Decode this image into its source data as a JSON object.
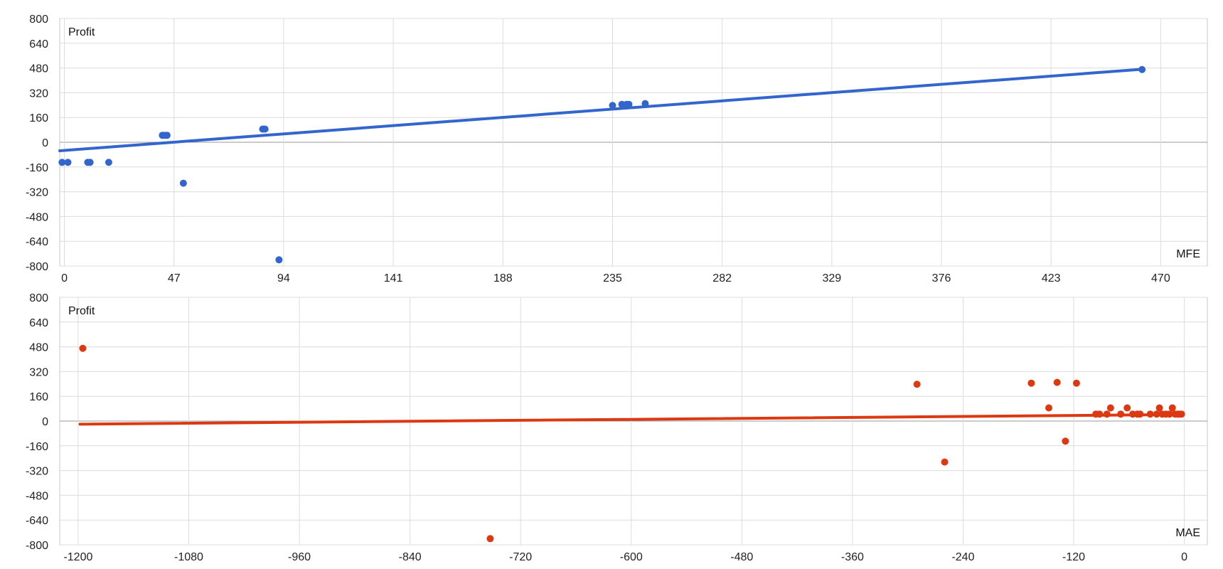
{
  "chart_data": [
    {
      "type": "scatter",
      "title": "",
      "ylabel": "Profit",
      "xlabel": "MFE",
      "xlim": [
        -2,
        490
      ],
      "ylim": [
        -800,
        800
      ],
      "x_ticks": [
        "0",
        "47",
        "94",
        "141",
        "188",
        "235",
        "282",
        "329",
        "376",
        "423",
        "470"
      ],
      "x_tick_values": [
        0,
        47,
        94,
        141,
        188,
        235,
        282,
        329,
        376,
        423,
        470
      ],
      "y_ticks": [
        "800",
        "640",
        "480",
        "320",
        "160",
        "0",
        "-160",
        "-320",
        "-480",
        "-640",
        "-800"
      ],
      "y_tick_values": [
        800,
        640,
        480,
        320,
        160,
        0,
        -160,
        -320,
        -480,
        -640,
        -800
      ],
      "grid": true,
      "color": "#3366cc",
      "points": [
        {
          "x": -1,
          "y": -130
        },
        {
          "x": 1.5,
          "y": -130
        },
        {
          "x": 10,
          "y": -130
        },
        {
          "x": 11,
          "y": -130
        },
        {
          "x": 19,
          "y": -130
        },
        {
          "x": 42,
          "y": 45
        },
        {
          "x": 43,
          "y": 45
        },
        {
          "x": 44,
          "y": 45
        },
        {
          "x": 51,
          "y": -265
        },
        {
          "x": 85,
          "y": 85
        },
        {
          "x": 86,
          "y": 85
        },
        {
          "x": 92,
          "y": -760
        },
        {
          "x": 235,
          "y": 238
        },
        {
          "x": 239,
          "y": 245
        },
        {
          "x": 241,
          "y": 245
        },
        {
          "x": 242,
          "y": 245
        },
        {
          "x": 249,
          "y": 250
        },
        {
          "x": 462,
          "y": 470
        }
      ],
      "trendline": {
        "x": [
          -2,
          462
        ],
        "y": [
          -55,
          472
        ]
      }
    },
    {
      "type": "scatter",
      "title": "",
      "ylabel": "Profit",
      "xlabel": "MAE",
      "xlim": [
        -1220,
        25
      ],
      "ylim": [
        -800,
        800
      ],
      "x_ticks": [
        "-1200",
        "-1080",
        "-960",
        "-840",
        "-720",
        "-600",
        "-480",
        "-360",
        "-240",
        "-120",
        "0"
      ],
      "x_tick_values": [
        -1200,
        -1080,
        -960,
        -840,
        -720,
        -600,
        -480,
        -360,
        -240,
        -120,
        0
      ],
      "y_ticks": [
        "800",
        "640",
        "480",
        "320",
        "160",
        "0",
        "-160",
        "-320",
        "-480",
        "-640",
        "-800"
      ],
      "y_tick_values": [
        800,
        640,
        480,
        320,
        160,
        0,
        -160,
        -320,
        -480,
        -640,
        -800
      ],
      "grid": true,
      "color": "#dc3912",
      "points": [
        {
          "x": -1195,
          "y": 470
        },
        {
          "x": -753,
          "y": -760
        },
        {
          "x": -290,
          "y": 238
        },
        {
          "x": -260,
          "y": -265
        },
        {
          "x": -166,
          "y": 245
        },
        {
          "x": -147,
          "y": 85
        },
        {
          "x": -138,
          "y": 250
        },
        {
          "x": -129,
          "y": -130
        },
        {
          "x": -117,
          "y": 245
        },
        {
          "x": -96,
          "y": 45
        },
        {
          "x": -92,
          "y": 45
        },
        {
          "x": -84,
          "y": 45
        },
        {
          "x": -80,
          "y": 85
        },
        {
          "x": -69,
          "y": 45
        },
        {
          "x": -62,
          "y": 85
        },
        {
          "x": -56,
          "y": 45
        },
        {
          "x": -51,
          "y": 45
        },
        {
          "x": -48,
          "y": 45
        },
        {
          "x": -37,
          "y": 45
        },
        {
          "x": -30,
          "y": 45
        },
        {
          "x": -27,
          "y": 85
        },
        {
          "x": -24,
          "y": 45
        },
        {
          "x": -20,
          "y": 45
        },
        {
          "x": -16,
          "y": 45
        },
        {
          "x": -13,
          "y": 85
        },
        {
          "x": -10,
          "y": 45
        },
        {
          "x": -7,
          "y": 45
        },
        {
          "x": -5,
          "y": 45
        },
        {
          "x": -3,
          "y": 45
        }
      ],
      "trendline": {
        "x": [
          -1198,
          -6
        ],
        "y": [
          -20,
          42
        ]
      }
    }
  ]
}
